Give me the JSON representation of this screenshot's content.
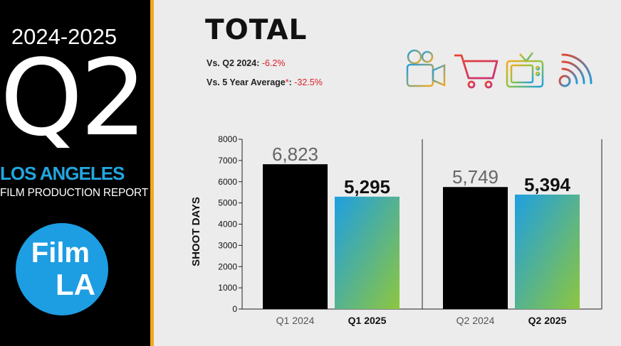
{
  "sidebar": {
    "years": "2024-2025",
    "quarter": "Q2",
    "city": "LOS ANGELES",
    "report": "FILM PRODUCTION REPORT",
    "logo_line1": "Film",
    "logo_line2": "LA"
  },
  "header": {
    "title": "TOTAL",
    "stats": [
      {
        "label": "Vs. Q2 2024: ",
        "value": "-6.2%"
      },
      {
        "label": "Vs. 5 Year Average",
        "asterisk": "*",
        "sep": ": ",
        "value": "-32.5%"
      }
    ]
  },
  "icons": [
    "film-camera-icon",
    "shopping-cart-icon",
    "television-icon",
    "web-signal-icon"
  ],
  "colors": {
    "accent": "#f2a91d",
    "brand_blue": "#1d9de2",
    "bar_black": "#000000",
    "gradient_top": "#1e9fe0",
    "gradient_bottom": "#8dc63f",
    "negative": "#d81f2a"
  },
  "chart_data": {
    "type": "bar",
    "ylabel": "SHOOT DAYS",
    "ylim": [
      0,
      8000
    ],
    "yticks": [
      0,
      1000,
      2000,
      3000,
      4000,
      5000,
      6000,
      7000,
      8000
    ],
    "groups": [
      {
        "bars": [
          {
            "category": "Q1 2024",
            "value": 6823,
            "label": "6,823",
            "style": "black"
          },
          {
            "category": "Q1 2025",
            "value": 5295,
            "label": "5,295",
            "style": "gradient"
          }
        ]
      },
      {
        "bars": [
          {
            "category": "Q2 2024",
            "value": 5749,
            "label": "5,749",
            "style": "black"
          },
          {
            "category": "Q2 2025",
            "value": 5394,
            "label": "5,394",
            "style": "gradient"
          }
        ]
      }
    ]
  }
}
